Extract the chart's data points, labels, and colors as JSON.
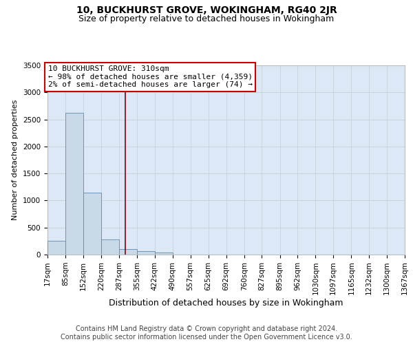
{
  "title": "10, BUCKHURST GROVE, WOKINGHAM, RG40 2JR",
  "subtitle": "Size of property relative to detached houses in Wokingham",
  "xlabel": "Distribution of detached houses by size in Wokingham",
  "ylabel": "Number of detached properties",
  "footer_line1": "Contains HM Land Registry data © Crown copyright and database right 2024.",
  "footer_line2": "Contains public sector information licensed under the Open Government Licence v3.0.",
  "bar_color": "#c9d9e8",
  "bar_edge_color": "#5a8ab5",
  "grid_color": "#c8d4e0",
  "background_color": "#dce8f5",
  "vline_value": 310,
  "vline_color": "#8b0000",
  "annotation_line1": "10 BUCKHURST GROVE: 310sqm",
  "annotation_line2": "← 98% of detached houses are smaller (4,359)",
  "annotation_line3": "2% of semi-detached houses are larger (74) →",
  "annotation_box_edgecolor": "#cc0000",
  "bin_edges": [
    17,
    85,
    152,
    220,
    287,
    355,
    422,
    490,
    557,
    625,
    692,
    760,
    827,
    895,
    962,
    1030,
    1097,
    1165,
    1232,
    1300,
    1367
  ],
  "bin_counts": [
    250,
    2620,
    1150,
    280,
    100,
    60,
    35,
    0,
    0,
    0,
    0,
    0,
    0,
    0,
    0,
    0,
    0,
    0,
    0,
    0
  ],
  "ylim": [
    0,
    3500
  ],
  "yticks": [
    0,
    500,
    1000,
    1500,
    2000,
    2500,
    3000,
    3500
  ],
  "title_fontsize": 10,
  "subtitle_fontsize": 9,
  "xlabel_fontsize": 9,
  "ylabel_fontsize": 8,
  "tick_fontsize": 7.5,
  "annotation_fontsize": 8,
  "footer_fontsize": 7
}
